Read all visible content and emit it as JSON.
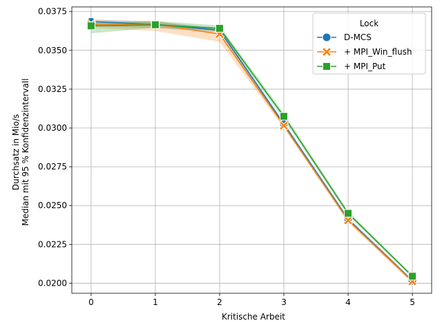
{
  "chart_data": {
    "type": "line",
    "xlabel": "Kritische Arbeit",
    "ylabel_lines": [
      "Durchsatz in Mio/s",
      "Median mit 95 % Konfidenzintervall"
    ],
    "x": [
      0,
      1,
      2,
      3,
      4,
      5
    ],
    "xticks": [
      "0",
      "1",
      "2",
      "3",
      "4",
      "5"
    ],
    "xlim": [
      -0.3,
      5.3
    ],
    "yticks": [
      "0.0200",
      "0.0225",
      "0.0250",
      "0.0275",
      "0.0300",
      "0.0325",
      "0.0350",
      "0.0375"
    ],
    "ylim": [
      0.01935,
      0.0378
    ],
    "grid": true,
    "legend": {
      "title": "Lock",
      "placement": "top-right"
    },
    "series": [
      {
        "name": "D-MCS",
        "color": "#1f77b4",
        "marker": "circle",
        "values": [
          0.03685,
          0.03668,
          0.0363,
          0.03025,
          0.02412,
          0.02015
        ],
        "ci_low": [
          0.03655,
          0.03645,
          0.03615,
          0.0301,
          0.024,
          0.02005
        ],
        "ci_high": [
          0.037,
          0.03685,
          0.03645,
          0.0304,
          0.02425,
          0.02025
        ]
      },
      {
        "name": "+ MPI_Win_flush",
        "color": "#ff7f0e",
        "marker": "x",
        "values": [
          0.03668,
          0.03668,
          0.03605,
          0.03015,
          0.02405,
          0.02012
        ],
        "ci_low": [
          0.03645,
          0.03625,
          0.03555,
          0.03,
          0.0239,
          0.02
        ],
        "ci_high": [
          0.03695,
          0.0369,
          0.0363,
          0.0303,
          0.0242,
          0.02025
        ]
      },
      {
        "name": "+ MPI_Put",
        "color": "#2ca02c",
        "marker": "square",
        "values": [
          0.03658,
          0.03665,
          0.03642,
          0.03075,
          0.0245,
          0.02045
        ],
        "ci_low": [
          0.0361,
          0.03645,
          0.03625,
          0.03055,
          0.02435,
          0.02035
        ],
        "ci_high": [
          0.03675,
          0.0369,
          0.0366,
          0.03095,
          0.02465,
          0.02055
        ]
      }
    ]
  }
}
